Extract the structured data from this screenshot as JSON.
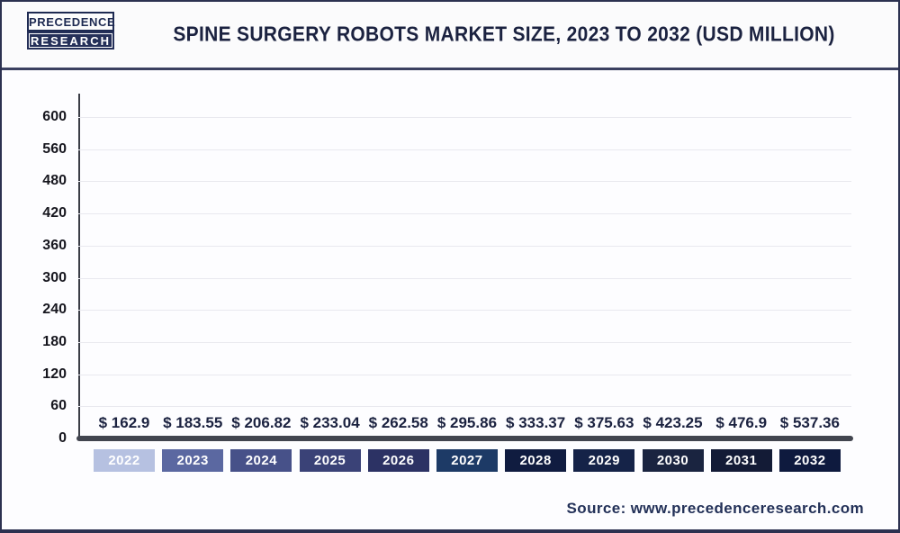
{
  "header": {
    "logo_line1": "PRECEDENCE",
    "logo_line2": "RESEARCH",
    "title": "SPINE SURGERY ROBOTS MARKET SIZE, 2023 TO 2032 (USD MILLION)"
  },
  "footer": {
    "source": "Source: www.precedenceresearch.com"
  },
  "chart_data": {
    "type": "bar",
    "title": "Spine Surgery Robots Market Size, 2023 to 2032 (USD Million)",
    "categories": [
      "2022",
      "2023",
      "2024",
      "2025",
      "2026",
      "2027",
      "2028",
      "2029",
      "2030",
      "2031",
      "2032"
    ],
    "values": [
      162.9,
      183.55,
      206.82,
      233.04,
      262.58,
      295.86,
      333.37,
      375.63,
      423.25,
      476.9,
      537.36
    ],
    "value_labels": [
      "$ 162.9",
      "$ 183.55",
      "$ 206.82",
      "$ 233.04",
      "$ 262.58",
      "$ 295.86",
      "$ 333.37",
      "$ 375.63",
      "$ 423.25",
      "$ 476.9",
      "$ 537.36"
    ],
    "bar_colors": [
      "#b6c1e1",
      "#5b68a1",
      "#475189",
      "#3a4277",
      "#2c3264",
      "#1d3a66",
      "#101c40",
      "#152348",
      "#1a2440",
      "#131b36",
      "#0e1a3e"
    ],
    "y_tick_labels": [
      "600",
      "560",
      "480",
      "420",
      "360",
      "300",
      "240",
      "180",
      "120",
      "60",
      "0"
    ],
    "ylim": [
      0,
      600
    ],
    "xlabel": "",
    "ylabel": "",
    "grid": "horizontal",
    "legend": "none",
    "unit": "USD Million",
    "colors": {
      "axis": "#42454f",
      "grid": "#e9e9ef",
      "value_label_text": "#1b2240",
      "pill_text": "#ffffff"
    }
  }
}
